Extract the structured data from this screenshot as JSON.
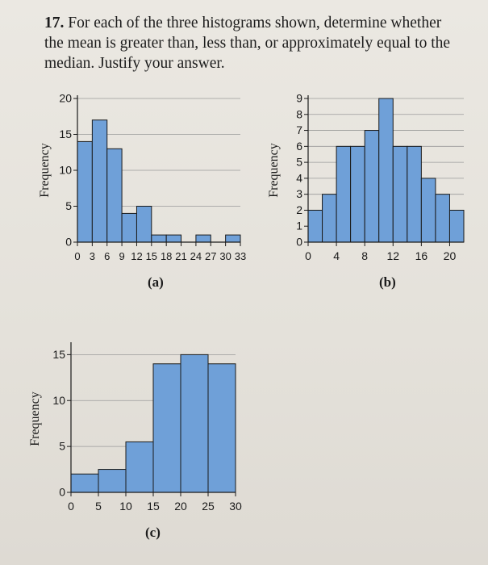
{
  "question": {
    "number": "17.",
    "line1": "For each of the three histograms shown, determine whether",
    "line2": "the mean is greater than, less than, or approximately equal to the",
    "line3": "median. Justify your answer."
  },
  "chart_data": [
    {
      "type": "bar",
      "panel": "(a)",
      "ylabel": "Frequency",
      "bin_edges": [
        0,
        3,
        6,
        9,
        12,
        15,
        18,
        21,
        24,
        27,
        30,
        33
      ],
      "values": [
        14,
        17,
        13,
        4,
        5,
        1,
        1,
        0,
        1,
        0,
        1
      ],
      "xticks": [
        "0",
        "3",
        "6",
        "9",
        "12",
        "15",
        "18",
        "21",
        "24",
        "27",
        "30",
        "33"
      ],
      "yticks": [
        "0",
        "5",
        "10",
        "15",
        "20"
      ],
      "ylim": [
        0,
        20
      ],
      "grid": true,
      "bar_color": "#6fa0d8"
    },
    {
      "type": "bar",
      "panel": "(b)",
      "ylabel": "Frequency",
      "bin_edges": [
        0,
        2,
        4,
        6,
        8,
        10,
        12,
        14,
        16,
        18,
        20,
        22
      ],
      "values": [
        2,
        3,
        6,
        6,
        7,
        9,
        6,
        6,
        4,
        3,
        2
      ],
      "xticks": [
        "0",
        "4",
        "8",
        "12",
        "16",
        "20"
      ],
      "yticks": [
        "0",
        "1",
        "2",
        "3",
        "4",
        "5",
        "6",
        "7",
        "8",
        "9"
      ],
      "ylim": [
        0,
        9
      ],
      "grid": true,
      "bar_color": "#6fa0d8"
    },
    {
      "type": "bar",
      "panel": "(c)",
      "ylabel": "Frequency",
      "bin_edges": [
        0,
        5,
        10,
        15,
        20,
        25,
        30
      ],
      "values": [
        2,
        2.5,
        5.5,
        14,
        15,
        14
      ],
      "xticks": [
        "0",
        "5",
        "10",
        "15",
        "20",
        "25",
        "30"
      ],
      "yticks": [
        "0",
        "5",
        "10",
        "15"
      ],
      "ylim": [
        0,
        16
      ],
      "grid": true,
      "bar_color": "#6fa0d8"
    }
  ]
}
